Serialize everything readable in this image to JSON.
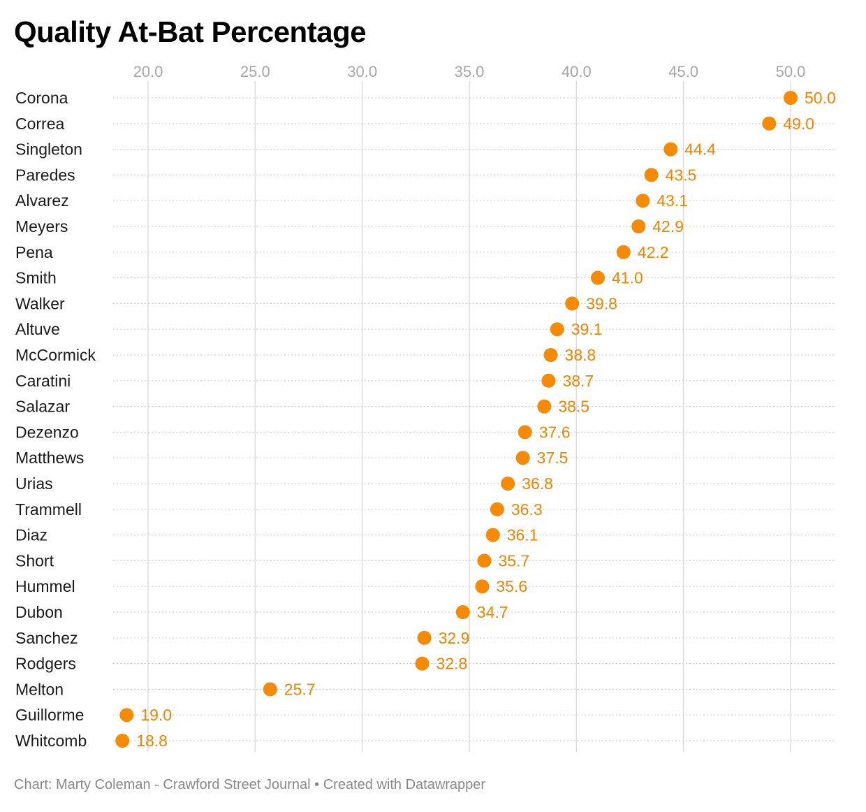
{
  "title": "Quality At-Bat Percentage",
  "footer": {
    "credit": "Chart: Marty Coleman - Crawford Street Journal",
    "separator": "•",
    "tool": "Created with Datawrapper"
  },
  "colors": {
    "dot": "#f58a07",
    "value_text": "#f08400",
    "gridline": "#dddddd",
    "rowline": "#d2d2d2",
    "tick_text": "#a6a6a6",
    "label_text": "#1a1a1a"
  },
  "chart_data": {
    "type": "scatter",
    "subtype": "dot-plot",
    "title": "Quality At-Bat Percentage",
    "xlabel": "",
    "ylabel": "",
    "xlim": [
      18,
      52
    ],
    "x_ticks": [
      20.0,
      25.0,
      30.0,
      35.0,
      40.0,
      45.0,
      50.0
    ],
    "x_tick_labels": [
      "20.0",
      "25.0",
      "30.0",
      "35.0",
      "40.0",
      "45.0",
      "50.0"
    ],
    "x_axis_position": "top",
    "grid": true,
    "categories": [
      "Corona",
      "Correa",
      "Singleton",
      "Paredes",
      "Alvarez",
      "Meyers",
      "Pena",
      "Smith",
      "Walker",
      "Altuve",
      "McCormick",
      "Caratini",
      "Salazar",
      "Dezenzo",
      "Matthews",
      "Urias",
      "Trammell",
      "Diaz",
      "Short",
      "Hummel",
      "Dubon",
      "Sanchez",
      "Rodgers",
      "Melton",
      "Guillorme",
      "Whitcomb"
    ],
    "values": [
      50.0,
      49.0,
      44.4,
      43.5,
      43.1,
      42.9,
      42.2,
      41.0,
      39.8,
      39.1,
      38.8,
      38.7,
      38.5,
      37.6,
      37.5,
      36.8,
      36.3,
      36.1,
      35.7,
      35.6,
      34.7,
      32.9,
      32.8,
      25.7,
      19.0,
      18.8
    ],
    "value_labels": [
      "50.0",
      "49.0",
      "44.4",
      "43.5",
      "43.1",
      "42.9",
      "42.2",
      "41.0",
      "39.8",
      "39.1",
      "38.8",
      "38.7",
      "38.5",
      "37.6",
      "37.5",
      "36.8",
      "36.3",
      "36.1",
      "35.7",
      "35.6",
      "34.7",
      "32.9",
      "32.8",
      "25.7",
      "19.0",
      "18.8"
    ]
  }
}
